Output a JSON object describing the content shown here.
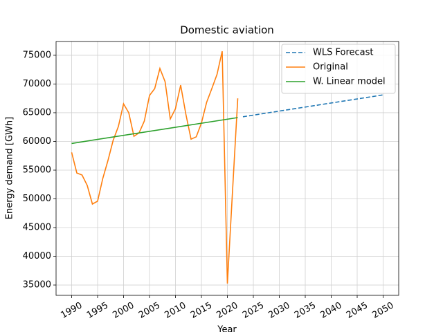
{
  "chart_data": {
    "type": "line",
    "title": "Domestic aviation",
    "x_label": "Year",
    "y_label": "Energy demand [GWh]",
    "xlim": [
      1987,
      2053
    ],
    "ylim": [
      33200,
      77400
    ],
    "xticks": [
      1990,
      1995,
      2000,
      2005,
      2010,
      2015,
      2020,
      2025,
      2030,
      2035,
      2040,
      2045,
      2050
    ],
    "yticks": [
      35000,
      40000,
      45000,
      50000,
      55000,
      60000,
      65000,
      70000,
      75000
    ],
    "grid": true,
    "legend": "upper right",
    "series": [
      {
        "name": "WLS Forecast",
        "color": "#1f77b4",
        "linestyle": "dashed",
        "x": [
          2023,
          2050
        ],
        "values": [
          64300,
          68100
        ]
      },
      {
        "name": "Original",
        "color": "#ff7f0e",
        "linestyle": "solid",
        "x": [
          1990,
          1991,
          1992,
          1993,
          1994,
          1995,
          1996,
          1997,
          1998,
          1999,
          2000,
          2001,
          2002,
          2003,
          2004,
          2005,
          2006,
          2007,
          2008,
          2009,
          2010,
          2011,
          2012,
          2013,
          2014,
          2015,
          2016,
          2017,
          2018,
          2019,
          2020,
          2021,
          2022
        ],
        "values": [
          58100,
          54500,
          54150,
          52350,
          49100,
          49600,
          53550,
          56700,
          60200,
          62600,
          66550,
          65000,
          60900,
          61500,
          63550,
          68000,
          69200,
          72700,
          70400,
          63900,
          65700,
          69800,
          64750,
          60400,
          60800,
          63200,
          66800,
          69200,
          71650,
          75700,
          35250,
          51500,
          67500
        ]
      },
      {
        "name": "W. Linear model",
        "color": "#2ca02c",
        "linestyle": "solid",
        "x": [
          1990,
          2022
        ],
        "values": [
          59650,
          64150
        ]
      }
    ]
  }
}
